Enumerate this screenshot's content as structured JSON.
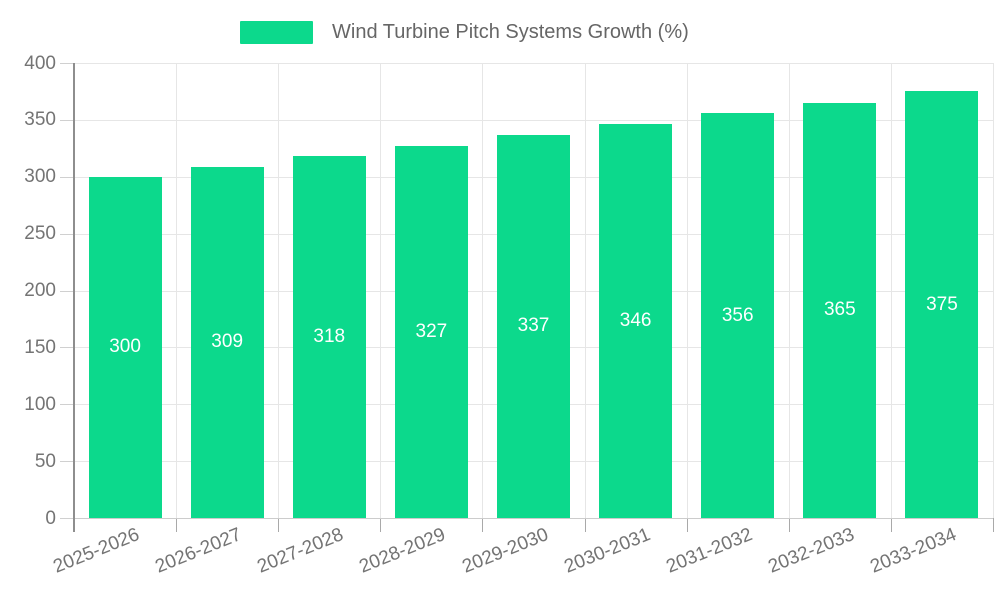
{
  "legend": {
    "label": "Wind Turbine Pitch Systems Growth (%)"
  },
  "colors": {
    "bar": "#0cd98c",
    "grid": "#e6e6e6",
    "y_axis_line": "#8e8e8e",
    "x_axis_line": "#cccccc",
    "axis_text": "#747474",
    "legend_text": "#666666",
    "value_label": "#ffffff"
  },
  "chart_data": {
    "type": "bar",
    "title": "Wind Turbine Pitch Systems Growth (%)",
    "categories": [
      "2025-2026",
      "2026-2027",
      "2027-2028",
      "2028-2029",
      "2029-2030",
      "2030-2031",
      "2031-2032",
      "2032-2033",
      "2033-2034"
    ],
    "values": [
      300,
      309,
      318,
      327,
      337,
      346,
      356,
      365,
      375
    ],
    "xlabel": "",
    "ylabel": "",
    "ylim": [
      0,
      400
    ],
    "ytick_step": 50,
    "ytick_labels": [
      "0",
      "50",
      "100",
      "150",
      "200",
      "250",
      "300",
      "350",
      "400"
    ],
    "grid": true,
    "legend_position": "top-center",
    "value_labels": "inside-middle",
    "x_label_rotation_deg": -22
  }
}
